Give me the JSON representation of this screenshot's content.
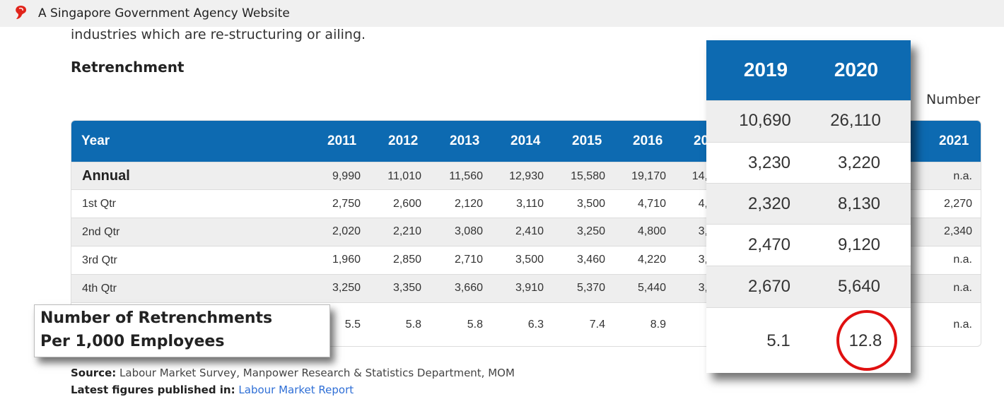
{
  "banner": {
    "text": "A Singapore Government Agency Website",
    "icon": "lion-head-icon",
    "icon_color": "#e1241b"
  },
  "intro": "industries which are re-structuring or ailing.",
  "section_title": "Retrenchment",
  "unit_label": "Number",
  "colors": {
    "header_blue": "#0d6ab1",
    "row_shade": "#eeeeee",
    "link_blue": "#2f6fd6",
    "circle_red": "#e01010"
  },
  "table": {
    "year_label": "Year",
    "columns": [
      "2011",
      "2012",
      "2013",
      "2014",
      "2015",
      "2016",
      "20",
      "2021"
    ],
    "rows": [
      {
        "label": "Annual",
        "values": [
          "9,990",
          "11,010",
          "11,560",
          "12,930",
          "15,580",
          "19,170",
          "14,",
          "n.a."
        ]
      },
      {
        "label": "1st Qtr",
        "values": [
          "2,750",
          "2,600",
          "2,120",
          "3,110",
          "3,500",
          "4,710",
          "4,",
          "2,270"
        ]
      },
      {
        "label": "2nd Qtr",
        "values": [
          "2,020",
          "2,210",
          "3,080",
          "2,410",
          "3,250",
          "4,800",
          "3,",
          "2,340"
        ]
      },
      {
        "label": "3rd Qtr",
        "values": [
          "1,960",
          "2,850",
          "2,710",
          "3,500",
          "3,460",
          "4,220",
          "3,",
          "n.a."
        ]
      },
      {
        "label": "4th Qtr",
        "values": [
          "3,250",
          "3,350",
          "3,660",
          "3,910",
          "5,370",
          "5,440",
          "3,",
          "n.a."
        ]
      },
      {
        "label": "",
        "values": [
          "5.5",
          "5.8",
          "5.8",
          "6.3",
          "7.4",
          "8.9",
          "",
          "n.a."
        ]
      }
    ]
  },
  "callout": {
    "line1": "Number of Retrenchments",
    "line2": "Per 1,000 Employees"
  },
  "zoom": {
    "columns": [
      "2019",
      "2020"
    ],
    "rows": [
      [
        "10,690",
        "26,110"
      ],
      [
        "3,230",
        "3,220"
      ],
      [
        "2,320",
        "8,130"
      ],
      [
        "2,470",
        "9,120"
      ],
      [
        "2,670",
        "5,640"
      ],
      [
        "5.1",
        "12.8"
      ]
    ]
  },
  "footer": {
    "source_label": "Source:",
    "source_text": "Labour Market Survey, Manpower Research & Statistics Department, MOM",
    "latest_label": "Latest figures published in:",
    "latest_link": "Labour Market Report"
  }
}
